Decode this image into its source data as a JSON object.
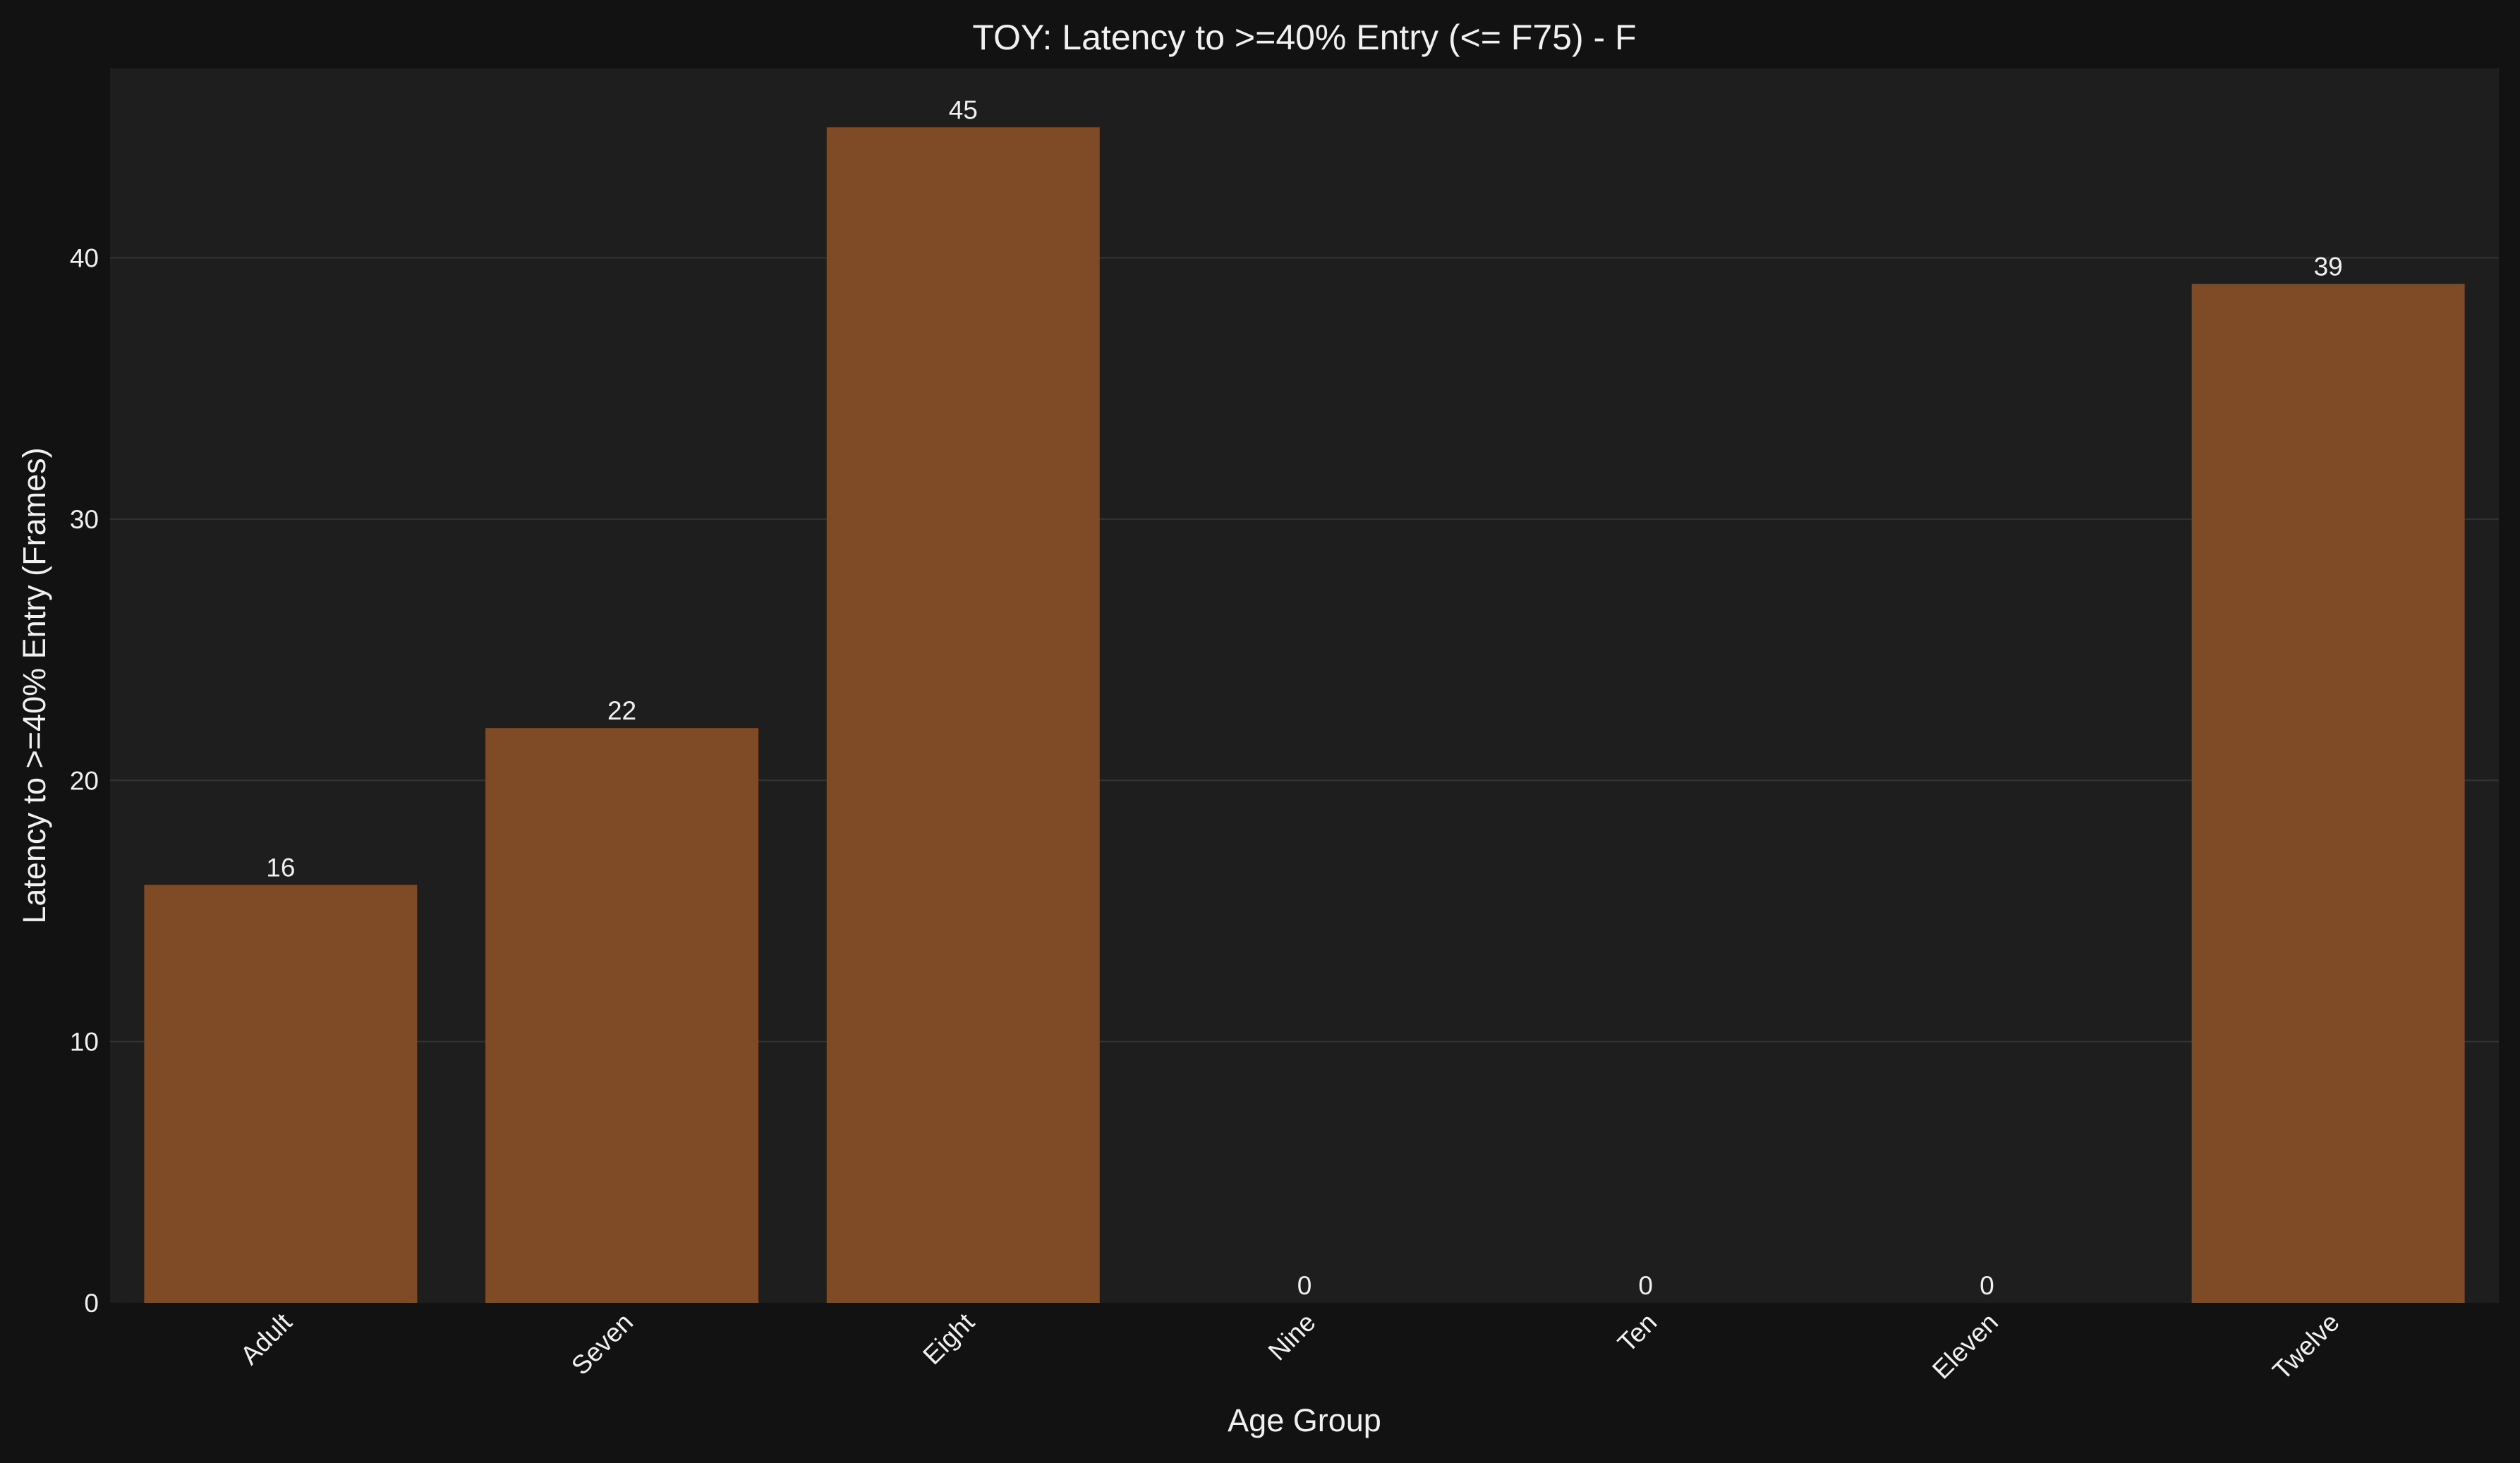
{
  "chart_data": {
    "type": "bar",
    "title": "TOY: Latency to >=40% Entry (<= F75) - F",
    "xlabel": "Age Group",
    "ylabel": "Latency to >=40% Entry (Frames)",
    "categories": [
      "Adult",
      "Seven",
      "Eight",
      "Nine",
      "Ten",
      "Eleven",
      "Twelve"
    ],
    "values": [
      16,
      22,
      45,
      0,
      0,
      0,
      39
    ],
    "data_labels": [
      "16",
      "22",
      "45",
      "0",
      "0",
      "0",
      "39"
    ],
    "ylim": [
      0,
      47.25
    ],
    "yticks": [
      0,
      10,
      20,
      30,
      40
    ],
    "ytick_labels": [
      "0",
      "10",
      "20",
      "30",
      "40"
    ],
    "grid": true,
    "legend": "none",
    "colors": {
      "figure_background": "#121212",
      "plot_background": "#1e1e1e",
      "bar": "#7f4a26",
      "grid": "#333333",
      "text": "#f0f0f0"
    }
  }
}
